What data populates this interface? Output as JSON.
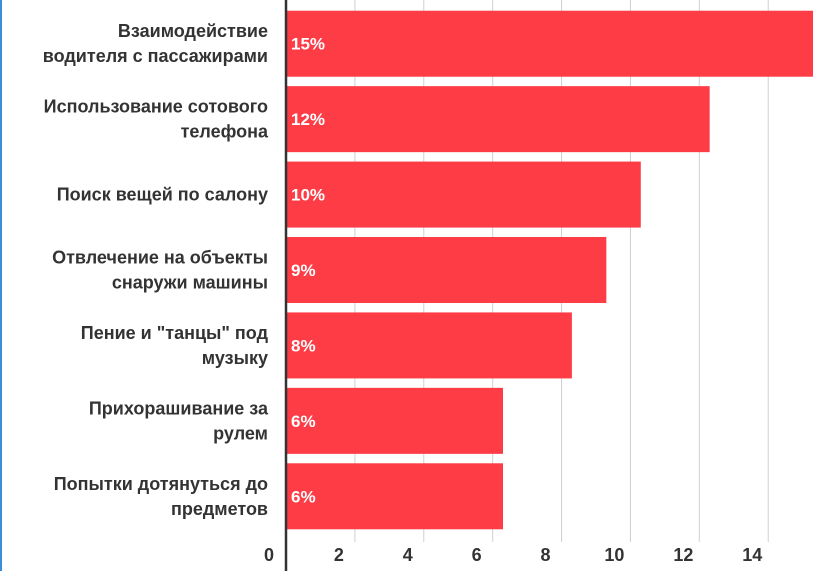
{
  "chart_data": {
    "type": "bar",
    "orientation": "horizontal",
    "title": "",
    "xlabel": "",
    "ylabel": "",
    "categories": [
      [
        "Взаимодействие",
        "водителя с пассажирами"
      ],
      [
        "Использование сотового",
        "телефона"
      ],
      [
        "Поиск вещей по салону"
      ],
      [
        "Отвлечение на объекты",
        "снаружи машины"
      ],
      [
        "Пение и \"танцы\" под",
        "музыку"
      ],
      [
        "Прихорашивание за",
        "рулем"
      ],
      [
        "Попытки дотянуться до",
        "предметов"
      ]
    ],
    "values": [
      15.3,
      12.3,
      10.3,
      9.3,
      8.3,
      6.3,
      6.3
    ],
    "data_labels": [
      "15%",
      "12%",
      "10%",
      "9%",
      "8%",
      "6%",
      "6%"
    ],
    "xlim": [
      0,
      15.3
    ],
    "xticks": [
      0,
      2,
      4,
      6,
      8,
      10,
      12,
      14
    ],
    "xtick_labels": [
      "0",
      "2",
      "4",
      "6",
      "8",
      "10",
      "12",
      "14"
    ],
    "grid": true,
    "colors": {
      "bar": "#fd3c46",
      "grid": "#d0d0d0",
      "axis": "#333333",
      "text": "#333333",
      "bar_text": "#ffffff"
    }
  }
}
